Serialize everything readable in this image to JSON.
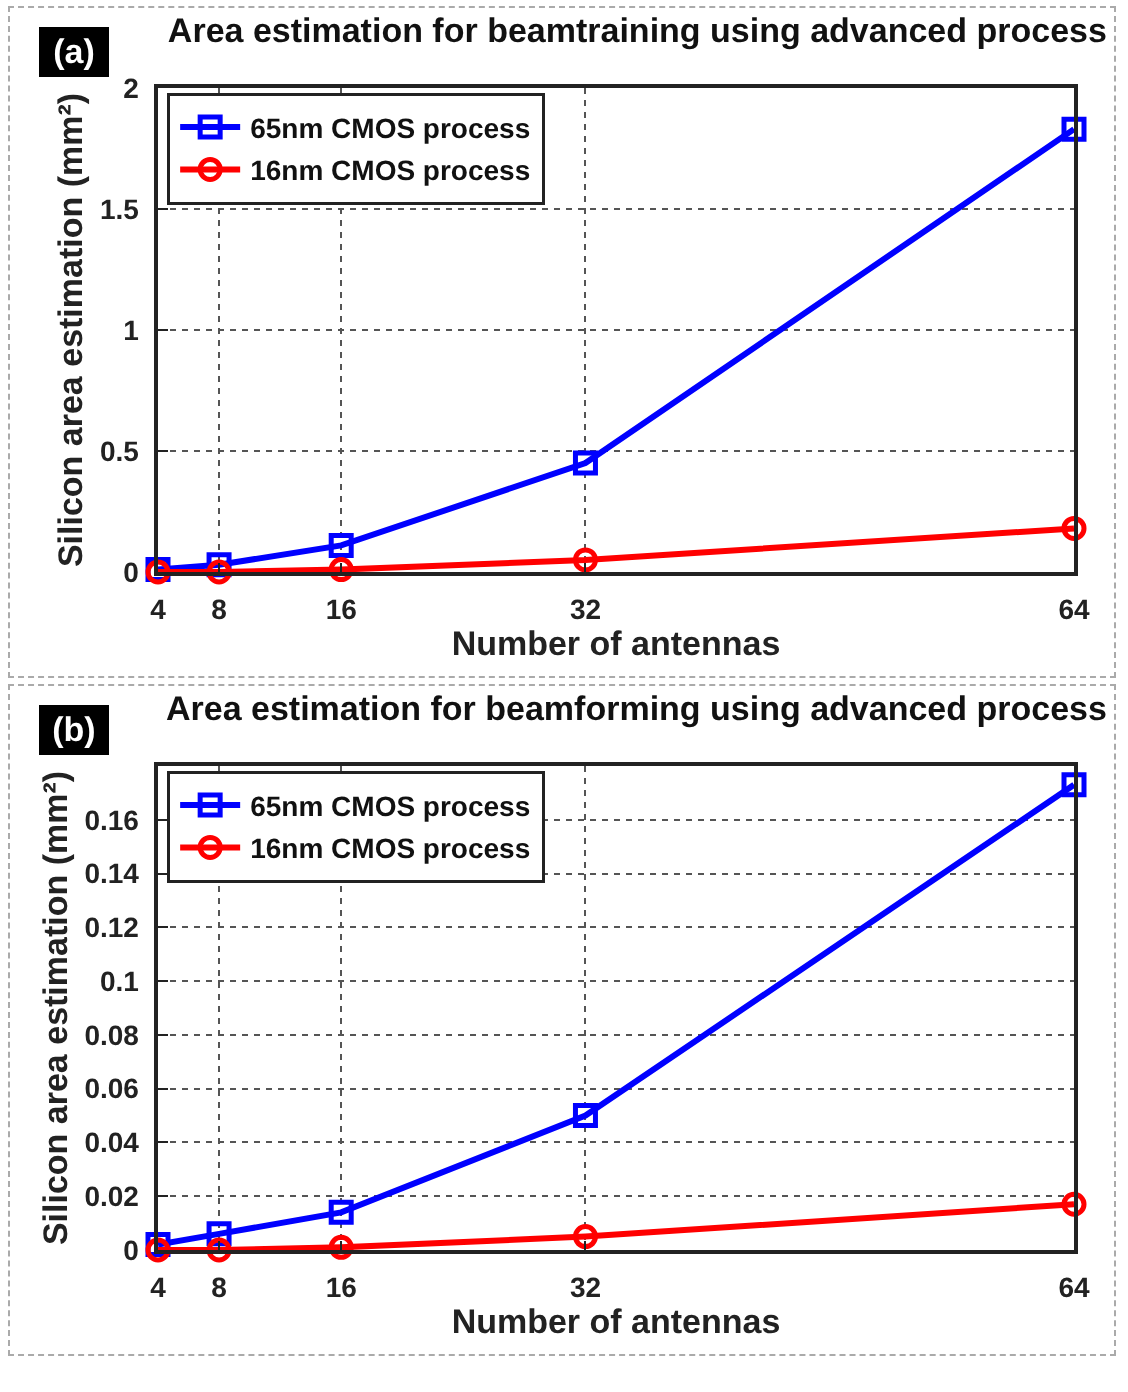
{
  "chart_data": [
    {
      "type": "line",
      "title": "Area estimation for beamtraining using advanced process",
      "annotations": [
        "(a)"
      ],
      "xlabel": "Number of antennas",
      "ylabel": "Silicon area estimation (mm²)",
      "x": [
        4,
        8,
        16,
        32,
        64
      ],
      "xlim": [
        4,
        64
      ],
      "xticks": [
        4,
        8,
        16,
        32,
        64
      ],
      "ylim": [
        0,
        2
      ],
      "yticks": [
        0,
        0.5,
        1,
        1.5,
        2
      ],
      "grid": true,
      "legend": "top left",
      "line_style": "solid",
      "series": [
        {
          "name": "65nm CMOS process",
          "color": "#0000ff",
          "marker": "square",
          "values": [
            0.01,
            0.03,
            0.11,
            0.45,
            1.83
          ]
        },
        {
          "name": "16nm CMOS process",
          "color": "#ff0000",
          "marker": "circle",
          "values": [
            0,
            0,
            0.01,
            0.05,
            0.18
          ]
        }
      ]
    },
    {
      "type": "line",
      "title": "Area estimation for beamforming using advanced process",
      "annotations": [
        "(b)"
      ],
      "xlabel": "Number of antennas",
      "ylabel": "Silicon area estimation (mm²)",
      "x": [
        4,
        8,
        16,
        32,
        64
      ],
      "xlim": [
        4,
        64
      ],
      "xticks": [
        4,
        8,
        16,
        32,
        64
      ],
      "ylim": [
        0,
        0.18
      ],
      "yticks": [
        0,
        0.02,
        0.04,
        0.06,
        0.08,
        0.1,
        0.12,
        0.14,
        0.16
      ],
      "grid": true,
      "legend": "top left",
      "line_style": "solid",
      "series": [
        {
          "name": "65nm CMOS process",
          "color": "#0000ff",
          "marker": "square",
          "values": [
            0.002,
            0.006,
            0.014,
            0.05,
            0.173
          ]
        },
        {
          "name": "16nm CMOS process",
          "color": "#ff0000",
          "marker": "circle",
          "values": [
            0,
            0,
            0.001,
            0.005,
            0.017
          ]
        }
      ]
    }
  ]
}
